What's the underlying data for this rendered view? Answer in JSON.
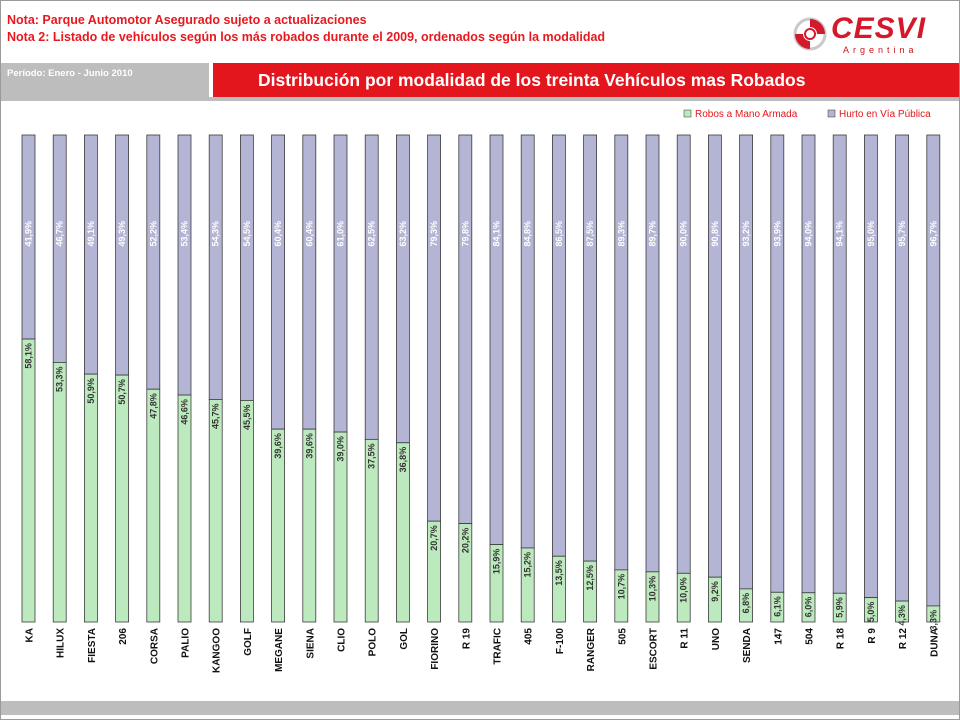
{
  "header": {
    "note1": "Nota: Parque Automotor Asegurado sujeto a actualizaciones",
    "note2": "Nota 2: Listado de vehículos según los más robados durante el 2009, ordenados según la modalidad",
    "period": "Período: Enero - Junio 2010",
    "logo_brand": "CESVI",
    "logo_country": "Argentina"
  },
  "colors": {
    "robos": "#bde9be",
    "hurto": "#b4b4d5",
    "accent_red": "#e3161d",
    "bar_bar": "#bdbdbd"
  },
  "chart_data": {
    "type": "bar",
    "stacked": true,
    "percent": true,
    "title": "Distribución por modalidad de los treinta Vehículos mas Robados",
    "legend_position": "top-right",
    "categories": [
      "KA",
      "HILUX",
      "FIESTA",
      "206",
      "CORSA",
      "PALIO",
      "KANGOO",
      "GOLF",
      "MEGANE",
      "SIENA",
      "CLIO",
      "POLO",
      "GOL",
      "FIORINO",
      "R 19",
      "TRAFIC",
      "405",
      "F-100",
      "RANGER",
      "505",
      "ESCORT",
      "R 11",
      "UNO",
      "SENDA",
      "147",
      "504",
      "R 18",
      "R 9",
      "R 12",
      "DUNA"
    ],
    "series": [
      {
        "name": "Robos a Mano Armada",
        "values": [
          58.1,
          53.3,
          50.9,
          50.7,
          47.8,
          46.6,
          45.7,
          45.5,
          39.6,
          39.6,
          39.0,
          37.5,
          36.8,
          20.7,
          20.2,
          15.9,
          15.2,
          13.5,
          12.5,
          10.7,
          10.3,
          10.0,
          9.2,
          6.8,
          6.1,
          6.0,
          5.9,
          5.0,
          4.3,
          3.3
        ],
        "labels": [
          "58,1%",
          "53,3%",
          "50,9%",
          "50,7%",
          "47,8%",
          "46,6%",
          "45,7%",
          "45,5%",
          "39,6%",
          "39,6%",
          "39,0%",
          "37,5%",
          "36,8%",
          "20,7%",
          "20,2%",
          "15,9%",
          "15,2%",
          "13,5%",
          "12,5%",
          "10,7%",
          "10,3%",
          "10,0%",
          "9,2%",
          "6,8%",
          "6,1%",
          "6,0%",
          "5,9%",
          "5,0%",
          "4,3%",
          "3,3%"
        ]
      },
      {
        "name": "Hurto en Vía Pública",
        "values": [
          41.9,
          46.7,
          49.1,
          49.3,
          52.2,
          53.4,
          54.3,
          54.5,
          60.4,
          60.4,
          61.0,
          62.5,
          63.2,
          79.3,
          79.8,
          84.1,
          84.8,
          86.5,
          87.5,
          89.3,
          89.7,
          90.0,
          90.8,
          93.2,
          93.9,
          94.0,
          94.1,
          95.0,
          95.7,
          96.7
        ],
        "labels": [
          "41,9%",
          "46,7%",
          "49,1%",
          "49,3%",
          "52,2%",
          "53,4%",
          "54,3%",
          "54,5%",
          "60,4%",
          "60,4%",
          "61,0%",
          "62,5%",
          "63,2%",
          "79,3%",
          "79,8%",
          "84,1%",
          "84,8%",
          "86,5%",
          "87,5%",
          "89,3%",
          "89,7%",
          "90,0%",
          "90,8%",
          "93,2%",
          "93,9%",
          "94,0%",
          "94,1%",
          "95,0%",
          "95,7%",
          "96,7%"
        ]
      }
    ],
    "ylim": [
      0,
      100
    ]
  }
}
